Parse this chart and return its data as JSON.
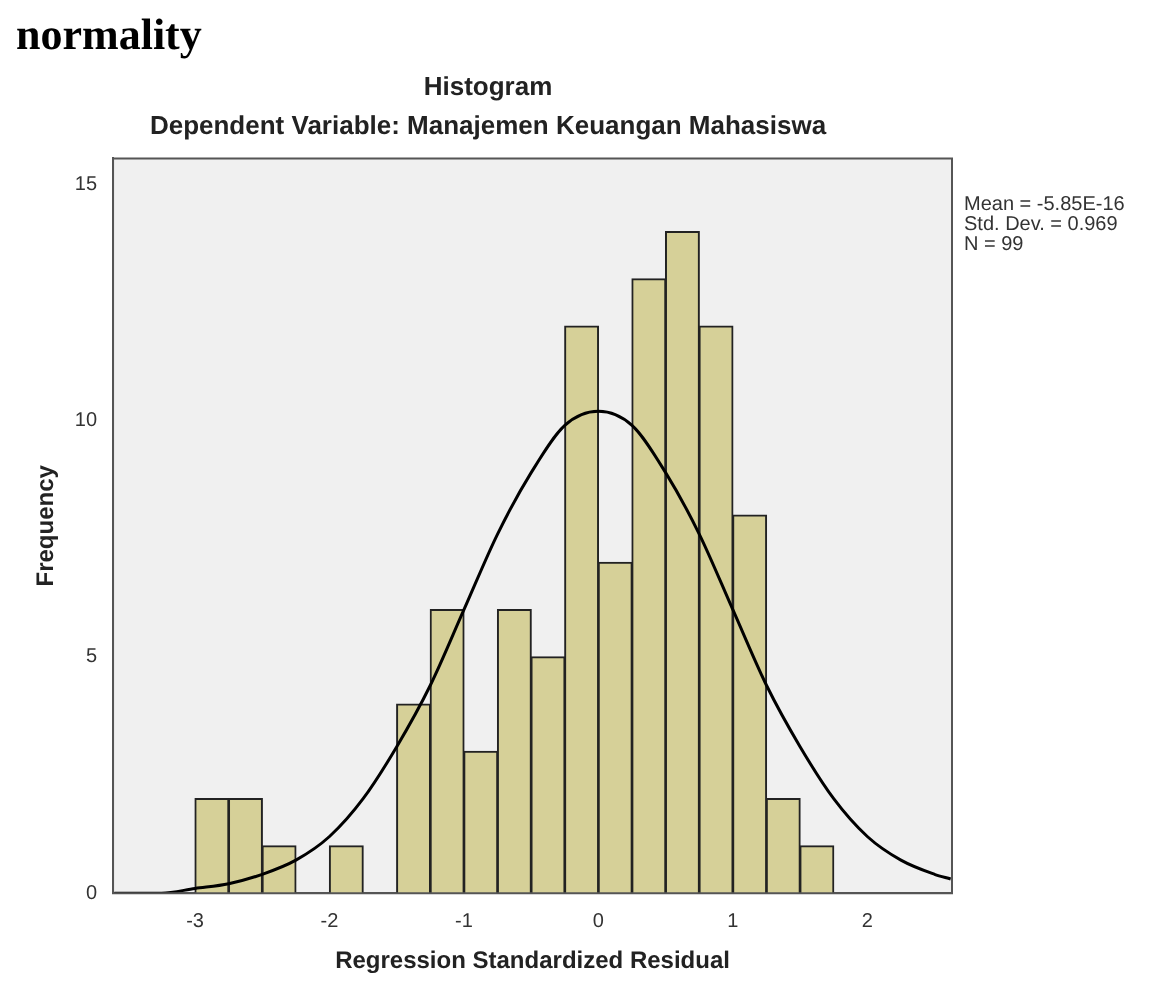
{
  "chart_data": {
    "type": "histogram",
    "title": "Histogram",
    "subtitle": "Dependent Variable: Manajemen Keuangan Mahasiswa",
    "xlabel": "Regression Standardized Residual",
    "ylabel": "Frequency",
    "bins": [
      -3,
      -2.75,
      -2.5,
      -2.25,
      -2,
      -1.75,
      -1.5,
      -1.25,
      -1,
      -0.75,
      -0.5,
      -0.25,
      0,
      0.25,
      0.5,
      0.75,
      1,
      1.25,
      1.5,
      1.75
    ],
    "values": [
      2,
      2,
      1,
      0,
      1,
      0,
      4,
      6,
      3,
      6,
      5,
      12,
      7,
      13,
      14,
      12,
      8,
      2,
      1
    ],
    "color": "#d6d098",
    "series": [
      {
        "type": "line",
        "color": "#000000",
        "x": [
          -3.6,
          -3.25,
          -3,
          -2.75,
          -2.5,
          -2.25,
          -2,
          -1.75,
          -1.5,
          -1.25,
          -1,
          -0.75,
          -0.5,
          -0.25,
          0,
          0.25,
          0.5,
          0.75,
          1,
          1.25,
          1.5,
          1.75,
          2,
          2.25,
          2.5,
          2.62
        ],
        "values": [
          0.0,
          0.0,
          0.1,
          0.2,
          0.4,
          0.7,
          1.2,
          2.0,
          3.1,
          4.4,
          6.0,
          7.6,
          8.9,
          9.9,
          10.2,
          9.9,
          8.9,
          7.6,
          6.0,
          4.4,
          3.1,
          2.0,
          1.2,
          0.7,
          0.4,
          0.3
        ]
      }
    ],
    "xlim": [
      -3.61,
      2.63
    ],
    "ylim": [
      0,
      15.55
    ],
    "xticks": [
      -3,
      -2,
      -1,
      0,
      1,
      2
    ],
    "yticks": [
      0,
      5,
      10,
      15
    ],
    "grid": false,
    "legend": false,
    "annotations": [
      "normality",
      "Mean = -5.85E-16",
      "Std. Dev. = 0.969",
      "N = 99"
    ]
  }
}
